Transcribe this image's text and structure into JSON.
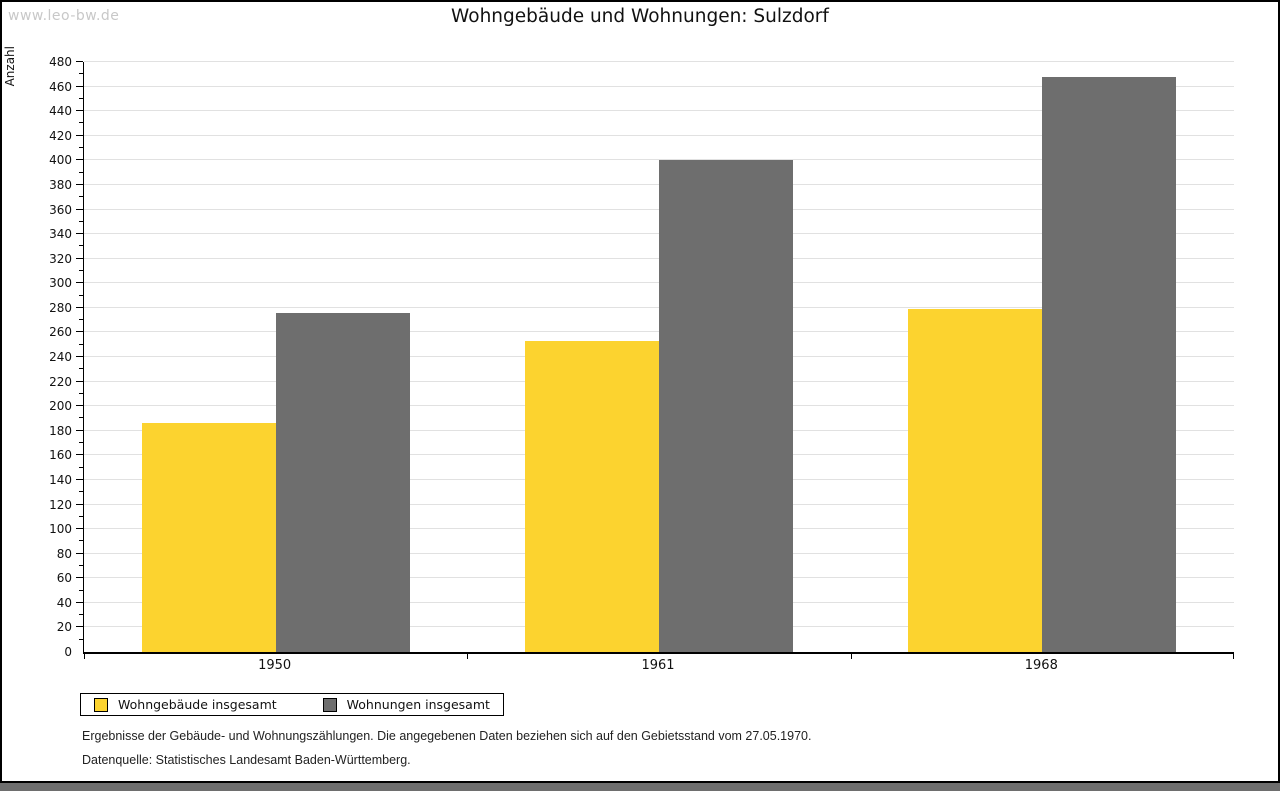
{
  "watermark": "www.leo-bw.de",
  "footnotes": [
    "Ergebnisse der Gebäude- und Wohnungszählungen. Die angegebenen Daten beziehen sich auf den Gebietsstand vom 27.05.1970.",
    "Datenquelle: Statistisches Landesamt Baden-Württemberg."
  ],
  "colors": {
    "series_yellow": "#FCD32F",
    "series_gray": "#6E6E6E",
    "gridline": "#E1E1E1",
    "watermark": "#C8C8C8",
    "frame": "#000000",
    "bottom_strip": "#6E6E6E",
    "background": "#FFFFFF"
  },
  "chart_data": {
    "type": "bar",
    "title": "Wohngebäude und Wohnungen: Sulzdorf",
    "xlabel": "",
    "ylabel": "Anzahl",
    "categories": [
      "1950",
      "1961",
      "1968"
    ],
    "series": [
      {
        "name": "Wohngebäude insgesamt",
        "color": "#FCD32F",
        "values": [
          186,
          253,
          279
        ]
      },
      {
        "name": "Wohnungen insgesamt",
        "color": "#6E6E6E",
        "values": [
          276,
          400,
          468
        ]
      }
    ],
    "ylim": [
      0,
      480
    ],
    "ytick_step": 20,
    "minor_tick_step": 10,
    "grid": true,
    "legend_position": "bottom-left"
  }
}
